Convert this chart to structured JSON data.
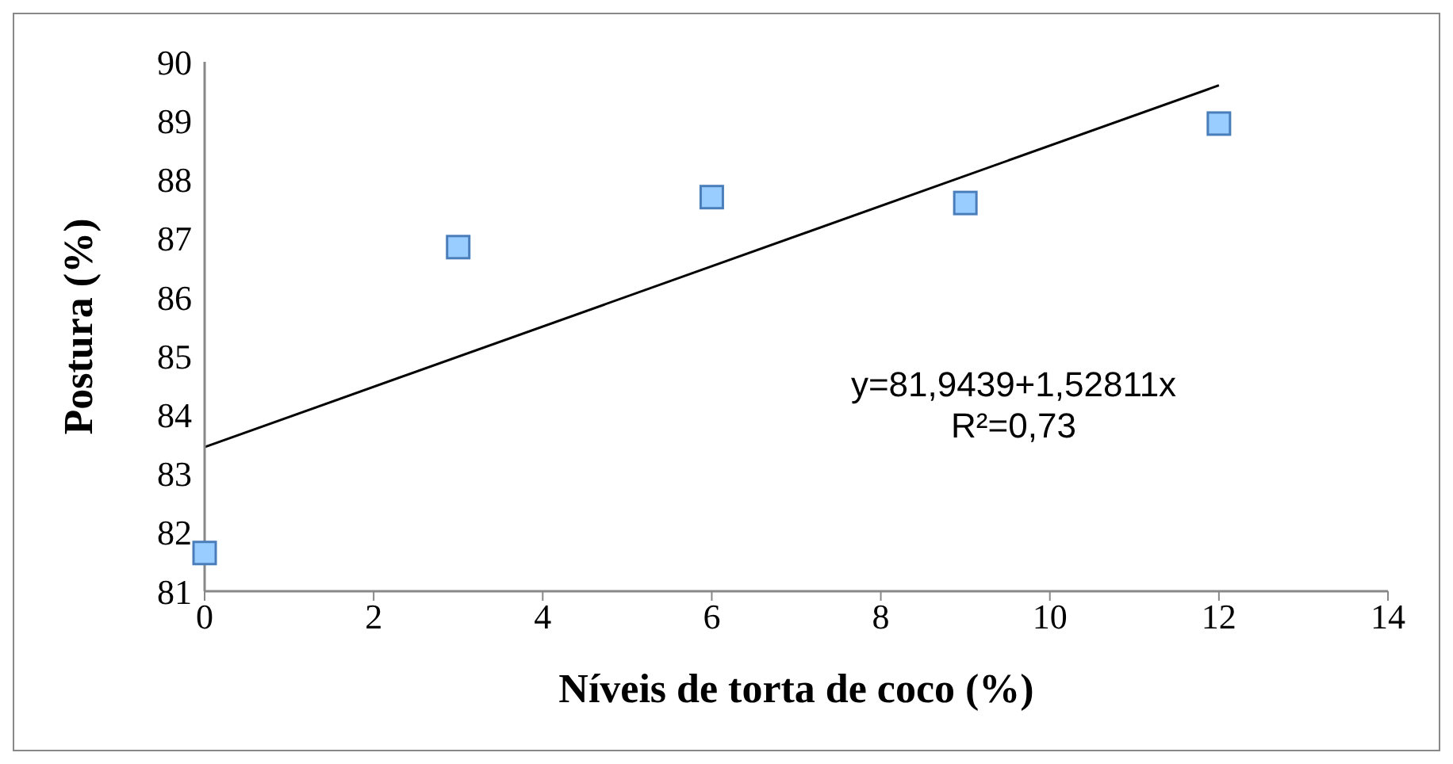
{
  "chart_data": {
    "type": "scatter",
    "xlabel": "Níveis de torta de coco (%)",
    "ylabel": "Postura (%)",
    "x": [
      0,
      3,
      6,
      9,
      12
    ],
    "series": [
      {
        "color": "#99ccff",
        "values": [
          81.65,
          86.85,
          87.7,
          87.6,
          88.95
        ]
      },
      {
        "type": "line",
        "marker": "none",
        "color": "#000000",
        "x": [
          0,
          12
        ],
        "values": [
          83.45,
          89.6
        ]
      }
    ],
    "xlim": [
      0,
      14
    ],
    "xticks": [
      0,
      2,
      4,
      6,
      8,
      10,
      12,
      14
    ],
    "ylim": [
      81,
      90
    ],
    "yticks": [
      81,
      82,
      83,
      84,
      85,
      86,
      87,
      88,
      89,
      90
    ],
    "marker": "square",
    "grid": false,
    "legend": false,
    "annotations": [
      "y=81,9439+1,52811x",
      "R²=0,73"
    ]
  }
}
